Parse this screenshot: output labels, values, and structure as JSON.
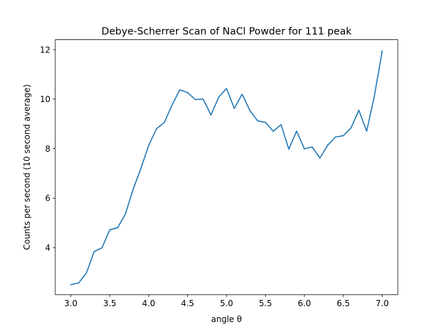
{
  "chart_data": {
    "type": "line",
    "title": "Debye-Scherrer Scan of NaCl Powder for 111 peak",
    "xlabel": "angle θ",
    "ylabel": "Counts per second (10 second average)",
    "xlim": [
      2.8,
      7.2
    ],
    "ylim": [
      2.1,
      12.4
    ],
    "xticks": [
      "3.0",
      "3.5",
      "4.0",
      "4.5",
      "5.0",
      "5.5",
      "6.0",
      "6.5",
      "7.0"
    ],
    "yticks": [
      "4",
      "6",
      "8",
      "10",
      "12"
    ],
    "grid": false,
    "color": "#1f77b4",
    "x": [
      3.0,
      3.1,
      3.2,
      3.3,
      3.4,
      3.5,
      3.6,
      3.7,
      3.8,
      3.9,
      4.0,
      4.1,
      4.2,
      4.3,
      4.4,
      4.5,
      4.6,
      4.7,
      4.8,
      4.9,
      5.0,
      5.1,
      5.2,
      5.3,
      5.4,
      5.5,
      5.6,
      5.7,
      5.8,
      5.9,
      6.0,
      6.1,
      6.2,
      6.3,
      6.4,
      6.5,
      6.6,
      6.7,
      6.8,
      6.9,
      7.0
    ],
    "y": [
      2.5,
      2.57,
      2.97,
      3.84,
      3.99,
      4.72,
      4.8,
      5.35,
      6.35,
      7.2,
      8.13,
      8.8,
      9.05,
      9.76,
      10.38,
      10.26,
      9.98,
      10.0,
      9.36,
      10.08,
      10.43,
      9.62,
      10.2,
      9.54,
      9.12,
      9.06,
      8.7,
      8.97,
      7.98,
      8.71,
      7.99,
      8.07,
      7.62,
      8.14,
      8.47,
      8.52,
      8.84,
      9.55,
      8.7,
      10.14,
      11.95
    ]
  }
}
